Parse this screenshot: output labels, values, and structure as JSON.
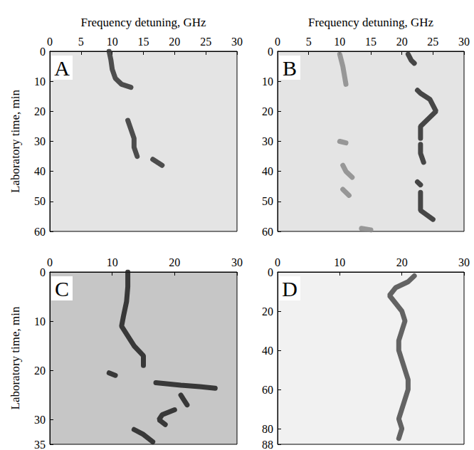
{
  "chart_data": [
    {
      "type": "line",
      "title": "A",
      "xlabel": "Frequency detuning, GHz",
      "ylabel": "Laboratory time, min",
      "xlim": [
        0,
        30
      ],
      "xticks": [
        0,
        5,
        10,
        15,
        20,
        25,
        30
      ],
      "ylim": [
        0,
        60
      ],
      "yticks": [
        0,
        10,
        20,
        30,
        40,
        50,
        60
      ],
      "series": [
        {
          "color": "#333333",
          "x": [
            9.5,
            9.8,
            10,
            10.5,
            11.5,
            13,
            null,
            12.5,
            13,
            13.5,
            13.5,
            14,
            null,
            16.5,
            18
          ],
          "y": [
            0,
            3,
            6,
            9,
            11,
            12,
            null,
            23,
            26,
            29,
            32,
            35,
            null,
            36,
            38
          ]
        }
      ]
    },
    {
      "type": "line",
      "title": "B",
      "xlabel": "Frequency detuning, GHz",
      "xlim": [
        0,
        30
      ],
      "xticks": [
        0,
        5,
        10,
        15,
        20,
        25,
        30
      ],
      "ylim": [
        0,
        60
      ],
      "yticks": [
        0,
        10,
        20,
        30,
        40,
        50,
        60
      ],
      "series": [
        {
          "color": "#2a2a2a",
          "x": [
            21,
            21.5,
            22,
            null,
            22.5,
            23,
            24.5,
            25.5,
            24,
            23,
            23,
            null,
            23,
            23,
            23.5,
            null,
            22.5,
            23,
            null,
            23,
            23,
            23,
            25
          ],
          "y": [
            1,
            3,
            4,
            null,
            13,
            14,
            16,
            20,
            23,
            25,
            29,
            null,
            31,
            34,
            37,
            null,
            43.5,
            44.5,
            null,
            47,
            50,
            53,
            56
          ]
        },
        {
          "color": "#8a8a8a",
          "x": [
            10,
            10.5,
            11,
            null,
            10,
            11,
            null,
            10.5,
            11,
            12,
            null,
            10.5,
            11.5,
            null,
            13.5,
            15
          ],
          "y": [
            1,
            5,
            11,
            null,
            30,
            30.5,
            null,
            38,
            40,
            42,
            null,
            46,
            48,
            null,
            59,
            59.5
          ]
        }
      ]
    },
    {
      "type": "line",
      "title": "C",
      "ylabel": "Laboratory time, min",
      "xlim": [
        0,
        30
      ],
      "xticks": [
        0,
        10,
        20,
        30
      ],
      "ylim": [
        0,
        35
      ],
      "yticks": [
        0,
        10,
        20,
        30
      ],
      "series": [
        {
          "color": "#1e1e1e",
          "x": [
            12.5,
            12.5,
            12.3,
            11.8,
            11.5,
            12.5,
            13.5,
            15,
            15,
            null,
            9.5,
            10.5,
            null,
            17,
            21,
            24,
            26.5,
            null,
            21,
            21.5,
            22,
            null,
            20,
            18,
            17.5,
            18.5,
            null,
            13.5,
            15,
            16.5
          ],
          "y": [
            0,
            3,
            6,
            9,
            11,
            13,
            15,
            17,
            19,
            null,
            20.5,
            21,
            null,
            22.5,
            23,
            23.3,
            23.6,
            null,
            25,
            26,
            27,
            null,
            28,
            29,
            30,
            31,
            null,
            32,
            33,
            34.5
          ]
        }
      ]
    },
    {
      "type": "line",
      "title": "D",
      "xlim": [
        0,
        30
      ],
      "xticks": [
        0,
        10,
        20,
        30
      ],
      "ylim": [
        0,
        88
      ],
      "yticks": [
        0,
        20,
        40,
        60,
        80
      ],
      "series": [
        {
          "color": "#4a4a4a",
          "x": [
            22,
            21,
            19,
            18,
            19,
            20,
            20.5,
            20,
            19.5,
            19.5,
            20,
            20.5,
            21,
            21,
            20.5,
            20,
            19.5,
            20,
            19.5
          ],
          "y": [
            2,
            5,
            8,
            12,
            16,
            20,
            25,
            30,
            35,
            40,
            45,
            50,
            55,
            60,
            65,
            70,
            75,
            80,
            85
          ]
        }
      ]
    }
  ]
}
